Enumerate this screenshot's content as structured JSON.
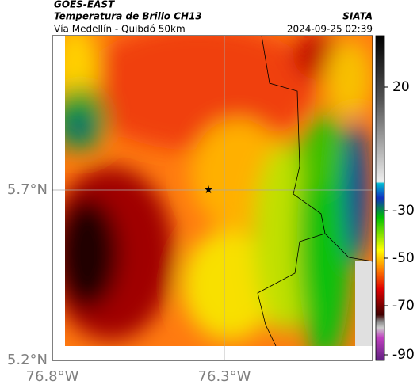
{
  "header": {
    "satellite": "GOES-EAST",
    "product": "Temperatura de Brillo CH13",
    "route": "Vía Medellín - Quibdó 50km",
    "source": "SIATA",
    "timestamp": "2024-09-25 02:39"
  },
  "axes": {
    "lat_labels": [
      "5.7°N",
      "5.2°N"
    ],
    "lon_labels": [
      "76.8°W",
      "76.3°W"
    ]
  },
  "colorbar": {
    "ticks": [
      20,
      -30,
      -50,
      -70,
      -90
    ]
  }
}
